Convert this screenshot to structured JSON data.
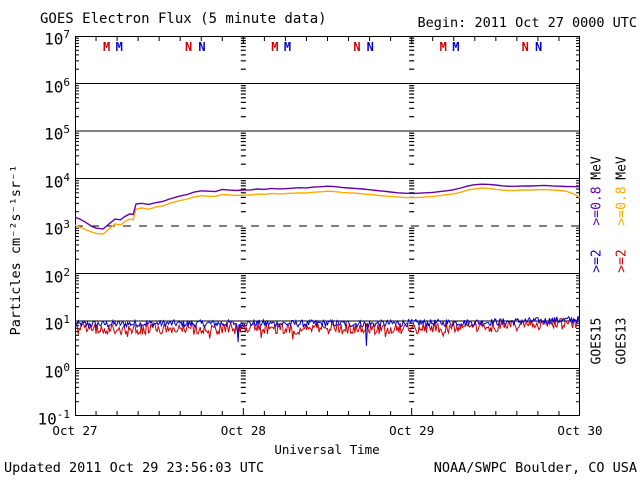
{
  "header": {
    "title": "GOES Electron Flux (5 minute data)",
    "begin": "Begin: 2011 Oct 27 0000 UTC"
  },
  "footer": {
    "updated": "Updated 2011 Oct 29 23:56:03 UTC",
    "source": "NOAA/SWPC Boulder, CO USA"
  },
  "legend": {
    "columns": [
      {
        "satellite": "GOES15",
        "items": [
          {
            "text": "GOES15",
            "color": "#000000"
          },
          {
            "text": ">=2",
            "color": "#0000CC"
          },
          {
            "text": ">=0.8",
            "color": "#6600AA"
          },
          {
            "text": "MeV",
            "color": "#000000"
          }
        ]
      },
      {
        "satellite": "GOES13",
        "items": [
          {
            "text": "GOES13",
            "color": "#000000"
          },
          {
            "text": ">=2",
            "color": "#CC0000"
          },
          {
            "text": ">=0.8",
            "color": "#FFAA00"
          },
          {
            "text": "MeV",
            "color": "#000000"
          }
        ]
      }
    ]
  },
  "chart_data": {
    "type": "line",
    "title": "GOES Electron Flux (5 minute data)",
    "xlabel": "Universal Time",
    "ylabel": "Particles cm⁻²s⁻¹sr⁻¹",
    "x_unit": "hours since 2011 Oct 27 0000 UTC",
    "x_range_hours": [
      0,
      72
    ],
    "x_tick_labels": [
      "Oct 27",
      "Oct 28",
      "Oct 29",
      "Oct 30"
    ],
    "x_tick_hours": [
      0,
      24,
      48,
      72
    ],
    "x_minor_tick_step_hours": 3,
    "y_scale": "log",
    "ylim": [
      0.1,
      10000000
    ],
    "y_tick_exponents": [
      7,
      6,
      5,
      4,
      3,
      2,
      1,
      0,
      -1
    ],
    "grid": "horizontal-decades",
    "threshold_line": {
      "value": 1000,
      "style": "dashed"
    },
    "day_boundary_lines_hours": [
      24,
      48
    ],
    "legend_position": "right-rotated",
    "markers": [
      {
        "label": "M",
        "meaning": "GOES13 local midnight",
        "color": "#CC0000",
        "hours": [
          4.5,
          28.5,
          52.5
        ]
      },
      {
        "label": "M",
        "meaning": "GOES15 local midnight",
        "color": "#0000CC",
        "hours": [
          6.3,
          30.3,
          54.3
        ]
      },
      {
        "label": "N",
        "meaning": "GOES13 local noon",
        "color": "#CC0000",
        "hours": [
          16.2,
          40.2,
          64.2
        ]
      },
      {
        "label": "N",
        "meaning": "GOES15 local noon",
        "color": "#0000CC",
        "hours": [
          18.1,
          42.1,
          66.1
        ]
      }
    ],
    "series": [
      {
        "name": "GOES13 >=0.8 MeV",
        "color": "#FFAA00",
        "kind": "smooth",
        "width": 1.4,
        "points": [
          [
            0,
            1050
          ],
          [
            0.7,
            950
          ],
          [
            1.5,
            840
          ],
          [
            2.3,
            750
          ],
          [
            3,
            700
          ],
          [
            4,
            680
          ],
          [
            4.5,
            780
          ],
          [
            5,
            900
          ],
          [
            5.7,
            1100
          ],
          [
            6.5,
            1050
          ],
          [
            7,
            1200
          ],
          [
            7.8,
            1400
          ],
          [
            8.3,
            1350
          ],
          [
            8.7,
            2250
          ],
          [
            9.5,
            2400
          ],
          [
            10.5,
            2250
          ],
          [
            11.5,
            2500
          ],
          [
            12.5,
            2650
          ],
          [
            13.5,
            3000
          ],
          [
            15,
            3450
          ],
          [
            16,
            3700
          ],
          [
            17,
            4100
          ],
          [
            18,
            4350
          ],
          [
            19,
            4250
          ],
          [
            20,
            4200
          ],
          [
            21,
            4600
          ],
          [
            22,
            4500
          ],
          [
            23,
            4400
          ],
          [
            24,
            4450
          ],
          [
            25,
            4500
          ],
          [
            26,
            4700
          ],
          [
            27,
            4650
          ],
          [
            28,
            4850
          ],
          [
            29,
            4750
          ],
          [
            30,
            4800
          ],
          [
            31,
            4900
          ],
          [
            32,
            5000
          ],
          [
            33,
            4950
          ],
          [
            34,
            5150
          ],
          [
            35,
            5250
          ],
          [
            36,
            5400
          ],
          [
            37,
            5300
          ],
          [
            38,
            5100
          ],
          [
            39,
            5000
          ],
          [
            40,
            4900
          ],
          [
            41,
            4750
          ],
          [
            42,
            4600
          ],
          [
            43,
            4450
          ],
          [
            44,
            4300
          ],
          [
            45,
            4200
          ],
          [
            46,
            4100
          ],
          [
            47,
            4000
          ],
          [
            48,
            3950
          ],
          [
            49,
            4000
          ],
          [
            50,
            4100
          ],
          [
            51,
            4200
          ],
          [
            52,
            4350
          ],
          [
            53,
            4550
          ],
          [
            54,
            4750
          ],
          [
            55,
            5150
          ],
          [
            56,
            5700
          ],
          [
            57,
            6050
          ],
          [
            58,
            6300
          ],
          [
            59,
            6200
          ],
          [
            60,
            5900
          ],
          [
            61,
            5700
          ],
          [
            62,
            5600
          ],
          [
            63,
            5650
          ],
          [
            64,
            5750
          ],
          [
            65,
            5700
          ],
          [
            66,
            5800
          ],
          [
            67,
            5850
          ],
          [
            68,
            5750
          ],
          [
            69,
            5600
          ],
          [
            70,
            5400
          ],
          [
            71,
            4800
          ],
          [
            72,
            4000
          ]
        ]
      },
      {
        "name": "GOES15 >=0.8 MeV",
        "color": "#6600AA",
        "kind": "smooth",
        "width": 1.4,
        "points": [
          [
            0,
            1550
          ],
          [
            0.7,
            1400
          ],
          [
            1.5,
            1200
          ],
          [
            2.3,
            1000
          ],
          [
            3,
            900
          ],
          [
            4,
            870
          ],
          [
            4.5,
            1000
          ],
          [
            5,
            1150
          ],
          [
            5.7,
            1400
          ],
          [
            6.5,
            1350
          ],
          [
            7,
            1550
          ],
          [
            7.8,
            1800
          ],
          [
            8.3,
            1750
          ],
          [
            8.7,
            2900
          ],
          [
            9.5,
            3000
          ],
          [
            10.5,
            2850
          ],
          [
            11.5,
            3100
          ],
          [
            12.5,
            3300
          ],
          [
            13.5,
            3700
          ],
          [
            15,
            4300
          ],
          [
            16,
            4600
          ],
          [
            17,
            5200
          ],
          [
            18,
            5500
          ],
          [
            19,
            5400
          ],
          [
            20,
            5300
          ],
          [
            21,
            5900
          ],
          [
            22,
            5700
          ],
          [
            23,
            5600
          ],
          [
            24,
            5700
          ],
          [
            25,
            5750
          ],
          [
            26,
            6000
          ],
          [
            27,
            5900
          ],
          [
            28,
            6200
          ],
          [
            29,
            6050
          ],
          [
            30,
            6100
          ],
          [
            31,
            6250
          ],
          [
            32,
            6400
          ],
          [
            33,
            6350
          ],
          [
            34,
            6600
          ],
          [
            35,
            6700
          ],
          [
            36,
            6900
          ],
          [
            37,
            6750
          ],
          [
            38,
            6500
          ],
          [
            39,
            6300
          ],
          [
            40,
            6200
          ],
          [
            41,
            6000
          ],
          [
            42,
            5800
          ],
          [
            43,
            5600
          ],
          [
            44,
            5400
          ],
          [
            45,
            5200
          ],
          [
            46,
            5000
          ],
          [
            47,
            4900
          ],
          [
            48,
            4850
          ],
          [
            49,
            4900
          ],
          [
            50,
            5000
          ],
          [
            51,
            5100
          ],
          [
            52,
            5300
          ],
          [
            53,
            5500
          ],
          [
            54,
            5800
          ],
          [
            55,
            6300
          ],
          [
            56,
            7000
          ],
          [
            57,
            7400
          ],
          [
            58,
            7600
          ],
          [
            59,
            7500
          ],
          [
            60,
            7300
          ],
          [
            61,
            7000
          ],
          [
            62,
            6850
          ],
          [
            63,
            6900
          ],
          [
            64,
            7000
          ],
          [
            65,
            6950
          ],
          [
            66,
            7050
          ],
          [
            67,
            7150
          ],
          [
            68,
            7000
          ],
          [
            69,
            6900
          ],
          [
            70,
            6800
          ],
          [
            71,
            6750
          ],
          [
            72,
            6700
          ]
        ]
      },
      {
        "name": "GOES13 >=2 MeV",
        "color": "#CC0000",
        "kind": "noisy",
        "width": 1,
        "base_points": [
          [
            0,
            7.2
          ],
          [
            6,
            7.0
          ],
          [
            12,
            7.2
          ],
          [
            18,
            7.1
          ],
          [
            24,
            7.3
          ],
          [
            30,
            7.1
          ],
          [
            36,
            7.3
          ],
          [
            42,
            7.2
          ],
          [
            48,
            7.5
          ],
          [
            54,
            7.7
          ],
          [
            60,
            8.1
          ],
          [
            63,
            8.4
          ],
          [
            66,
            8.7
          ],
          [
            69,
            9.1
          ],
          [
            72,
            9.4
          ]
        ],
        "noise_span_log10": 0.24,
        "seed": 67891,
        "spikes": [
          [
            7.5,
            4.6
          ],
          [
            19.2,
            4.3
          ],
          [
            26.5,
            4.4
          ],
          [
            31.0,
            4.1
          ],
          [
            44.2,
            4.6
          ],
          [
            52.5,
            4.8
          ]
        ]
      },
      {
        "name": "GOES15 >=2 MeV",
        "color": "#0000CC",
        "kind": "noisy",
        "width": 1,
        "base_points": [
          [
            0,
            8.8
          ],
          [
            6,
            9.0
          ],
          [
            12,
            9.2
          ],
          [
            18,
            9.1
          ],
          [
            24,
            9.3
          ],
          [
            30,
            9.1
          ],
          [
            36,
            9.3
          ],
          [
            42,
            9.0
          ],
          [
            48,
            9.4
          ],
          [
            54,
            9.5
          ],
          [
            60,
            9.9
          ],
          [
            63,
            10.1
          ],
          [
            66,
            10.4
          ],
          [
            69,
            10.8
          ],
          [
            72,
            11.2
          ]
        ],
        "noise_span_log10": 0.15,
        "seed": 12345,
        "spikes": [
          [
            23.2,
            3.6
          ],
          [
            41.6,
            3.0
          ]
        ]
      }
    ]
  }
}
